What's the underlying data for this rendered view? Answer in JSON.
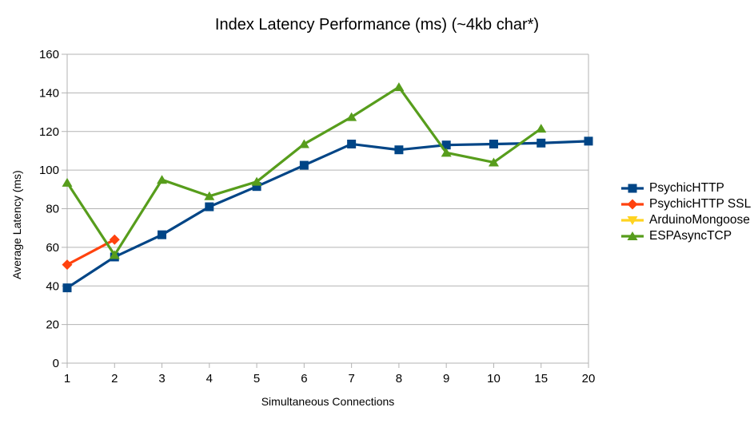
{
  "page": {
    "background": "#ffffff"
  },
  "chart_data": {
    "type": "line",
    "title": "Index Latency Performance (ms) (~4kb char*)",
    "xlabel": "Simultaneous Connections",
    "ylabel": "Average Latency (ms)",
    "categories": [
      "1",
      "2",
      "3",
      "4",
      "5",
      "6",
      "7",
      "8",
      "9",
      "10",
      "15",
      "20"
    ],
    "ylim": [
      0,
      160
    ],
    "yticks": [
      0,
      20,
      40,
      60,
      80,
      100,
      120,
      140,
      160
    ],
    "grid": "horizontal",
    "legend_position": "right",
    "axis_color": "#b3b3b3",
    "text_color": "#000000",
    "series": [
      {
        "name": "PsychicHTTP",
        "color": "#004586",
        "marker": "square",
        "values": [
          39,
          55,
          66.5,
          81,
          91.5,
          102.5,
          113.5,
          110.5,
          113,
          113.5,
          114,
          115
        ]
      },
      {
        "name": "PsychicHTTP SSL",
        "color": "#FF420E",
        "marker": "diamond",
        "values": [
          51,
          64,
          null,
          null,
          null,
          null,
          null,
          null,
          null,
          null,
          null,
          null
        ]
      },
      {
        "name": "ArduinoMongoose",
        "color": "#FFD320",
        "marker": "triangle-down",
        "values": [
          null,
          null,
          null,
          null,
          null,
          null,
          null,
          null,
          null,
          null,
          null,
          null
        ]
      },
      {
        "name": "ESPAsyncTCP",
        "color": "#579D1C",
        "marker": "triangle-up",
        "values": [
          93.5,
          56,
          95,
          86.5,
          94,
          113.5,
          127.5,
          143,
          109,
          104,
          121.5,
          null
        ]
      }
    ]
  }
}
